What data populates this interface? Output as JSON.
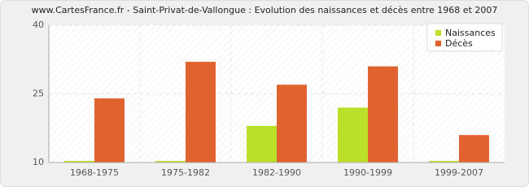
{
  "chart_data": {
    "type": "bar",
    "title": "www.CartesFrance.fr - Saint-Privat-de-Vallongue : Evolution des naissances et décès entre 1968 et 2007",
    "categories": [
      "1968-1975",
      "1975-1982",
      "1982-1990",
      "1990-1999",
      "1999-2007"
    ],
    "series": [
      {
        "name": "Naissances",
        "color": "#bbe02a",
        "values": [
          10,
          10,
          18,
          22,
          10
        ]
      },
      {
        "name": "Décès",
        "color": "#e0622e",
        "values": [
          24,
          32,
          27,
          31,
          16
        ]
      }
    ],
    "ylim": [
      10,
      40
    ],
    "yticks": [
      10,
      25,
      40
    ],
    "grid": true,
    "legend": "top-right"
  }
}
